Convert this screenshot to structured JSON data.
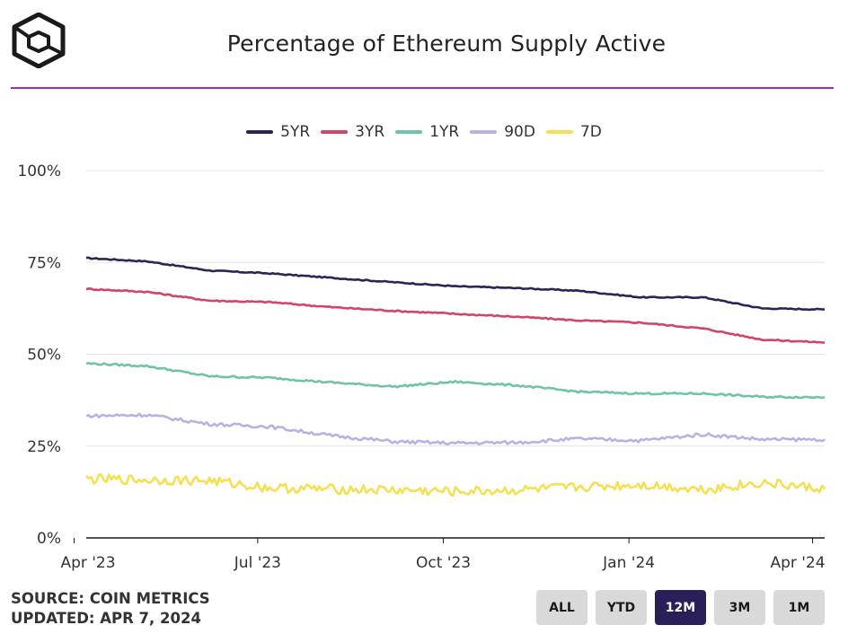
{
  "header": {
    "logo_icon": "cube-logo-icon",
    "title": "Percentage of Ethereum Supply Active",
    "accent_color": "#a12ad6"
  },
  "footer": {
    "source": "SOURCE: COIN METRICS",
    "updated": "UPDATED: APR 7, 2024"
  },
  "range_buttons": [
    {
      "label": "ALL",
      "active": false
    },
    {
      "label": "YTD",
      "active": false
    },
    {
      "label": "12M",
      "active": true
    },
    {
      "label": "3M",
      "active": false
    },
    {
      "label": "1M",
      "active": false
    }
  ],
  "chart_data": {
    "type": "line",
    "title": "Percentage of Ethereum Supply Active",
    "xlabel": "",
    "ylabel": "",
    "ylim": [
      0,
      100
    ],
    "yticks": [
      "0%",
      "25%",
      "50%",
      "75%",
      "100%"
    ],
    "xticks": [
      "Apr '23",
      "Jul '23",
      "Oct '23",
      "Jan '24",
      "Apr '24"
    ],
    "x": [
      "2023-04-07",
      "2023-05-07",
      "2023-06-07",
      "2023-07-07",
      "2023-08-07",
      "2023-09-07",
      "2023-10-07",
      "2023-11-07",
      "2023-12-07",
      "2024-01-07",
      "2024-02-07",
      "2024-03-07",
      "2024-04-07"
    ],
    "grid": true,
    "legend_position": "top-center",
    "series": [
      {
        "name": "5YR",
        "color": "#2b2555",
        "values": [
          76.2,
          75.3,
          72.8,
          72.0,
          70.8,
          69.6,
          68.5,
          68.0,
          67.3,
          65.5,
          65.5,
          62.5,
          62.2
        ]
      },
      {
        "name": "3YR",
        "color": "#d24566",
        "values": [
          67.8,
          67.0,
          64.6,
          64.2,
          62.8,
          61.8,
          61.0,
          60.2,
          59.2,
          58.6,
          57.0,
          54.0,
          53.2
        ]
      },
      {
        "name": "1YR",
        "color": "#6fc2ab",
        "values": [
          47.5,
          46.8,
          44.0,
          43.6,
          42.3,
          41.2,
          42.5,
          41.5,
          39.8,
          39.3,
          39.3,
          38.4,
          38.3
        ]
      },
      {
        "name": "90D",
        "color": "#b9b1e4",
        "values": [
          33.2,
          33.5,
          31.0,
          30.3,
          27.8,
          26.2,
          25.8,
          26.0,
          27.0,
          26.5,
          28.2,
          26.8,
          26.8
        ]
      },
      {
        "name": "7D",
        "color": "#f5e052",
        "values": [
          16.0,
          15.8,
          15.6,
          13.6,
          13.3,
          13.0,
          12.6,
          13.0,
          13.8,
          14.5,
          13.2,
          15.0,
          13.3
        ]
      }
    ]
  }
}
